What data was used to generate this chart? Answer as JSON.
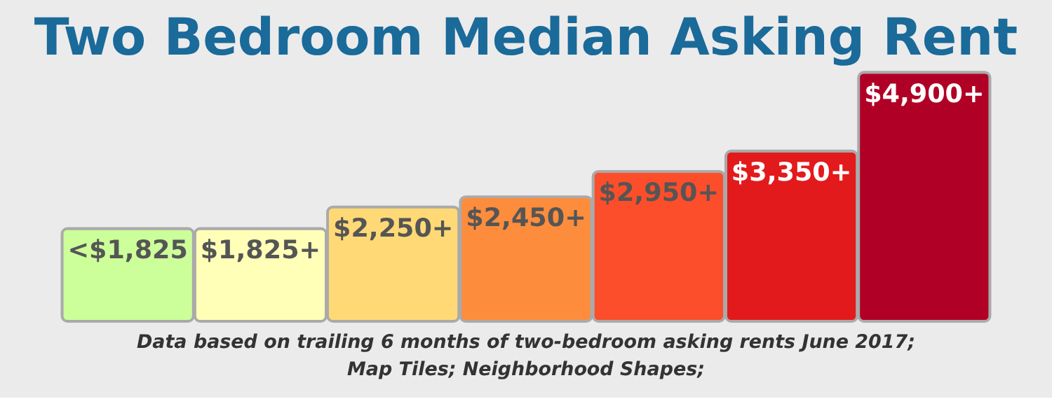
{
  "chart_data": {
    "type": "bar",
    "title": "Two Bedroom Median Asking Rent",
    "categories": [
      null,
      null,
      null,
      null,
      null,
      null,
      null
    ],
    "values": [
      1825,
      1825,
      2250,
      2450,
      2950,
      3350,
      4900
    ],
    "ylim": [
      0,
      4900
    ],
    "colors": [
      "#ccff99",
      "#ffffb8",
      "#fed976",
      "#fd8d3c",
      "#fc4e2a",
      "#e31a1c",
      "#b10026"
    ],
    "value_labels": [
      "<$1,825",
      "$1,825+",
      "$2,250+",
      "$2,450+",
      "$2,950+",
      "$3,350+",
      "$4,900+"
    ],
    "annotations": [
      "Data based on trailing 6 months of two-bedroom asking rents June 2017;",
      "Map Tiles; Neighborhood Shapes;"
    ]
  }
}
